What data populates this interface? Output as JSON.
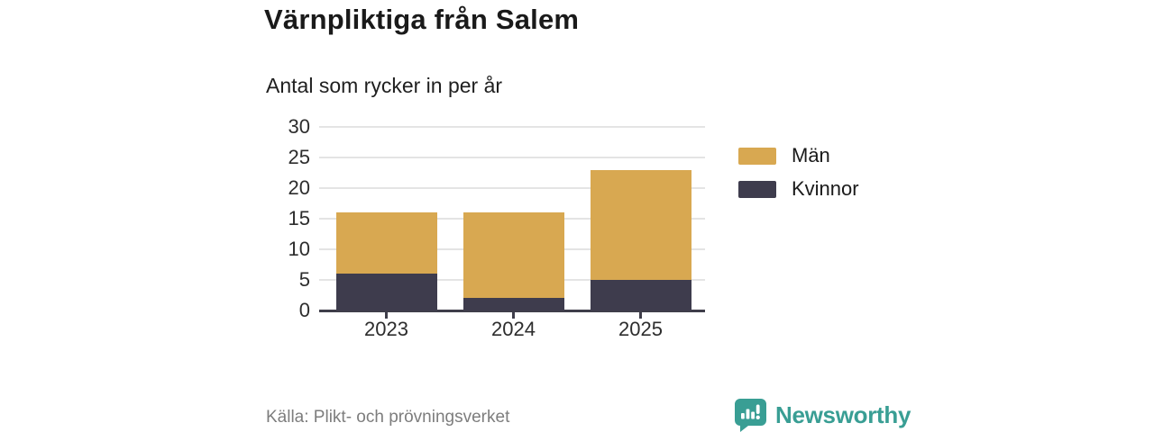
{
  "header": {
    "title": "Värnpliktiga från Salem",
    "subtitle": "Antal som rycker in per år"
  },
  "chart_data": {
    "type": "bar",
    "stacked": true,
    "categories": [
      "2023",
      "2024",
      "2025"
    ],
    "series": [
      {
        "name": "Kvinnor",
        "color": "#3e3c4d",
        "values": [
          6,
          2,
          5
        ]
      },
      {
        "name": "Män",
        "color": "#d8a851",
        "values": [
          10,
          14,
          18
        ]
      }
    ],
    "totals": [
      16,
      16,
      23
    ],
    "legend": [
      {
        "label": "Män",
        "color": "#d8a851"
      },
      {
        "label": "Kvinnor",
        "color": "#3e3c4d"
      }
    ],
    "legend_position": "right",
    "grid": true,
    "ylim": [
      0,
      30
    ],
    "yticks": [
      0,
      5,
      10,
      15,
      20,
      25,
      30
    ],
    "xlabel": "",
    "ylabel": ""
  },
  "footer": {
    "source": "Källa: Plikt- och prövningsverket",
    "brand": "Newsworthy"
  },
  "colors": {
    "men": "#d8a851",
    "women": "#3e3c4d",
    "axis": "#3f3e4a",
    "grid": "#e4e4e4",
    "teal": "#399e94",
    "source_text": "#7d7d7d"
  }
}
